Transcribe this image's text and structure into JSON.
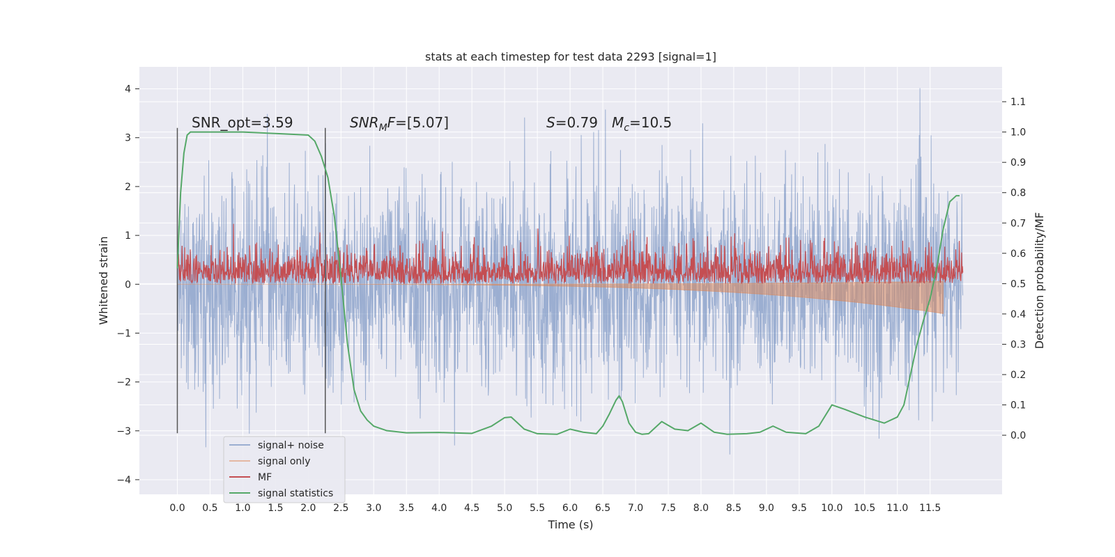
{
  "chart_data": {
    "type": "line",
    "title": "stats at each timestep for test data 2293 [signal=1]",
    "xlabel": "Time (s)",
    "ylabel": "Whitened strain",
    "ylabel_right": "Detection probability/MF",
    "xlim": [
      -0.58,
      12.6
    ],
    "ylim": [
      -4.3,
      4.45
    ],
    "ylim_right": [
      -0.195,
      1.215
    ],
    "x_ticks": [
      "0.0",
      "0.5",
      "1.0",
      "1.5",
      "2.0",
      "2.5",
      "3.0",
      "3.5",
      "4.0",
      "4.5",
      "5.0",
      "5.5",
      "6.0",
      "6.5",
      "7.0",
      "7.5",
      "8.0",
      "8.5",
      "9.0",
      "9.5",
      "10.0",
      "10.5",
      "11.0",
      "11.5"
    ],
    "y_ticks": [
      -4,
      -3,
      -2,
      -1,
      0,
      1,
      2,
      3,
      4
    ],
    "y_ticks_right": [
      "0.0",
      "0.1",
      "0.2",
      "0.3",
      "0.4",
      "0.5",
      "0.6",
      "0.7",
      "0.8",
      "0.9",
      "1.0",
      "1.1"
    ],
    "grid": true,
    "legend_position": "bottom-left",
    "background": "#eaeaf2",
    "annotations": {
      "snr_opt": "SNR_opt=3.59",
      "snr_mf": "=[5.07]",
      "s_value": "=0.79",
      "mc_value": "=10.5"
    },
    "vlines_x": [
      0.0,
      2.26
    ],
    "vlines_range": [
      -3.05,
      3.2
    ],
    "series": [
      {
        "name": "signal+ noise",
        "color": "#4c72b0",
        "x_range": [
          0.0,
          12.0
        ],
        "envelope": {
          "upper_typical": 2.0,
          "lower_typical": -2.0,
          "max": 4.1,
          "min": -3.9
        }
      },
      {
        "name": "signal only",
        "color": "#dd8452",
        "x_range": [
          0.0,
          11.7
        ],
        "envelope": {
          "start_amplitude": 0.0,
          "end_amplitude": 0.6
        }
      },
      {
        "name": "MF",
        "color": "#c44e52",
        "axis": "right",
        "x_range": [
          0.0,
          12.0
        ],
        "baseline": 0.5,
        "amplitude": 0.1
      },
      {
        "name": "signal statistics",
        "color": "#55a868",
        "axis": "right",
        "x": [
          0.0,
          0.05,
          0.1,
          0.15,
          0.2,
          0.3,
          0.5,
          1.0,
          1.5,
          2.0,
          2.1,
          2.2,
          2.3,
          2.4,
          2.5,
          2.6,
          2.7,
          2.8,
          2.9,
          3.0,
          3.2,
          3.5,
          4.0,
          4.5,
          4.8,
          5.0,
          5.1,
          5.2,
          5.3,
          5.5,
          5.8,
          6.0,
          6.2,
          6.4,
          6.5,
          6.6,
          6.7,
          6.75,
          6.8,
          6.9,
          7.0,
          7.1,
          7.2,
          7.4,
          7.6,
          7.8,
          8.0,
          8.2,
          8.4,
          8.7,
          8.9,
          9.1,
          9.3,
          9.6,
          9.8,
          10.0,
          10.2,
          10.5,
          10.8,
          11.0,
          11.1,
          11.2,
          11.3,
          11.4,
          11.5,
          11.6,
          11.7,
          11.8,
          11.9,
          11.95
        ],
        "values": [
          0.55,
          0.8,
          0.93,
          0.99,
          1.0,
          1.0,
          1.0,
          1.0,
          0.995,
          0.99,
          0.97,
          0.92,
          0.85,
          0.72,
          0.52,
          0.3,
          0.15,
          0.08,
          0.05,
          0.03,
          0.015,
          0.008,
          0.009,
          0.006,
          0.03,
          0.058,
          0.06,
          0.04,
          0.02,
          0.005,
          0.003,
          0.02,
          0.01,
          0.005,
          0.03,
          0.07,
          0.115,
          0.13,
          0.11,
          0.04,
          0.01,
          0.003,
          0.005,
          0.045,
          0.02,
          0.015,
          0.04,
          0.01,
          0.003,
          0.005,
          0.01,
          0.03,
          0.01,
          0.005,
          0.03,
          0.1,
          0.085,
          0.06,
          0.04,
          0.06,
          0.1,
          0.2,
          0.3,
          0.38,
          0.45,
          0.55,
          0.68,
          0.77,
          0.79,
          0.79
        ]
      }
    ]
  }
}
